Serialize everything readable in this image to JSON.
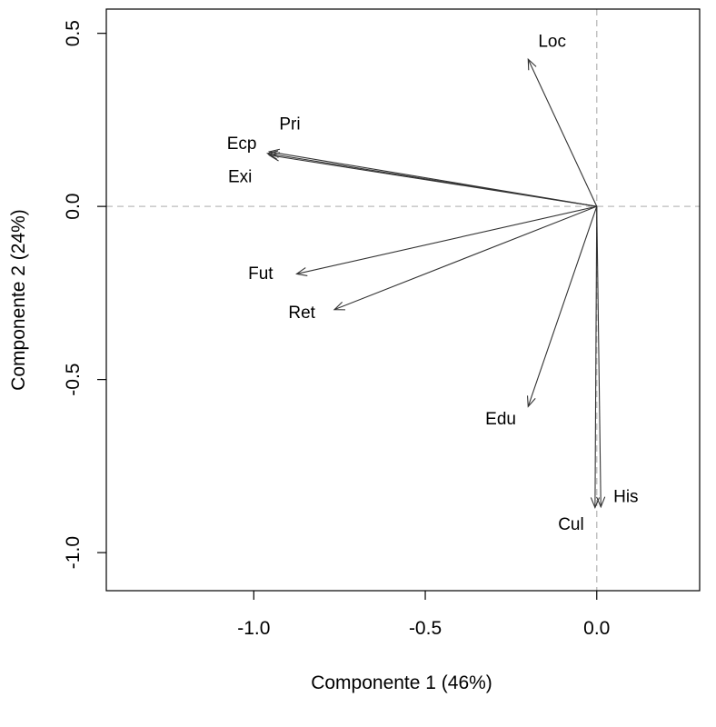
{
  "chart_data": {
    "type": "biplot",
    "xlabel": "Componente 1 (46%)",
    "ylabel": "Componente 2 (24%)",
    "xlim": [
      -1.43,
      0.3
    ],
    "ylim": [
      -1.11,
      0.57
    ],
    "xticks": [
      -1.0,
      -0.5,
      0.0
    ],
    "yticks": [
      0.5,
      0.0,
      -0.5,
      -1.0
    ],
    "xtick_labels": [
      "-1.0",
      "-0.5",
      "0.0"
    ],
    "ytick_labels": [
      "0.5",
      "0.0",
      "-0.5",
      "-1.0"
    ],
    "reference_lines": {
      "x": 0,
      "y": 0,
      "style": "dashed",
      "color": "#bbbbbb"
    },
    "arrow_color": "#333333",
    "vectors": [
      {
        "name": "Loc",
        "x": -0.2,
        "y": 0.425,
        "label_x": -0.13,
        "label_y": 0.475
      },
      {
        "name": "Pri",
        "x": -0.955,
        "y": 0.158,
        "label_x": -0.895,
        "label_y": 0.237
      },
      {
        "name": "Ecp",
        "x": -0.96,
        "y": 0.153,
        "label_x": -1.035,
        "label_y": 0.18
      },
      {
        "name": "Exi",
        "x": -0.955,
        "y": 0.148,
        "label_x": -1.04,
        "label_y": 0.085
      },
      {
        "name": "Fut",
        "x": -0.875,
        "y": -0.195,
        "label_x": -0.98,
        "label_y": -0.195
      },
      {
        "name": "Ret",
        "x": -0.765,
        "y": -0.298,
        "label_x": -0.86,
        "label_y": -0.308
      },
      {
        "name": "Edu",
        "x": -0.2,
        "y": -0.578,
        "label_x": -0.28,
        "label_y": -0.615
      },
      {
        "name": "His",
        "x": 0.012,
        "y": -0.868,
        "label_x": 0.085,
        "label_y": -0.84
      },
      {
        "name": "Cul",
        "x": -0.005,
        "y": -0.87,
        "label_x": -0.075,
        "label_y": -0.92
      }
    ]
  }
}
